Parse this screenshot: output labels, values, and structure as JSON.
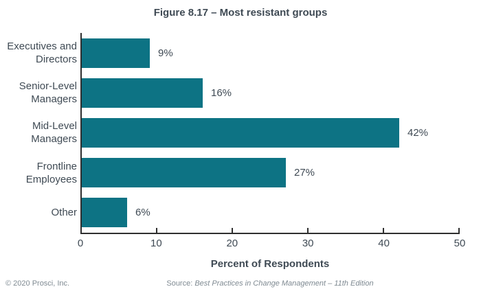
{
  "title": "Figure 8.17 – Most resistant groups",
  "chart_data": {
    "type": "bar",
    "orientation": "horizontal",
    "title": "Figure 8.17 – Most resistant groups",
    "categories": [
      "Executives and\nDirectors",
      "Senior-Level\nManagers",
      "Mid-Level\nManagers",
      "Frontline\nEmployees",
      "Other"
    ],
    "values": [
      9,
      16,
      42,
      27,
      6
    ],
    "value_labels": [
      "9%",
      "16%",
      "42%",
      "27%",
      "6%"
    ],
    "xlabel": "Percent of Respondents",
    "ylabel": "",
    "xlim": [
      0,
      50
    ],
    "xticks": [
      0,
      10,
      20,
      30,
      40,
      50
    ],
    "grid": false,
    "legend": false,
    "bar_color": "#0d7384",
    "axis_color": "#2e2e2e",
    "text_color": "#3f4a54"
  },
  "footer": {
    "copyright": "© 2020 Prosci, Inc.",
    "source_prefix": "Source: ",
    "source_title": "Best Practices in Change Management – 11th Edition"
  }
}
